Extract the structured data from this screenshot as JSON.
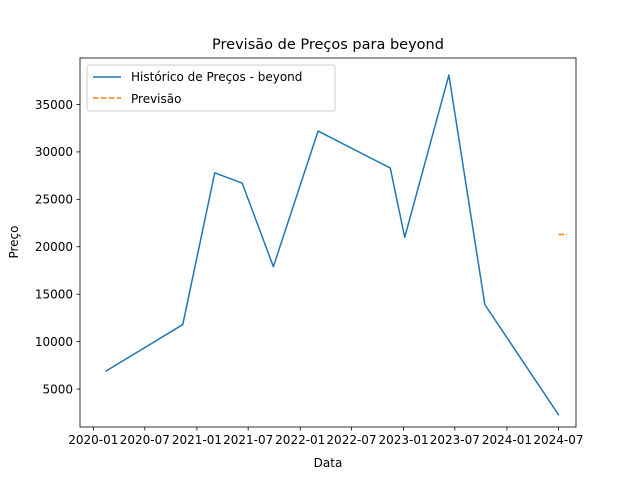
{
  "chart_data": {
    "type": "line",
    "title": "Previsão de Preços para beyond",
    "xlabel": "Data",
    "ylabel": "Preço",
    "x_axis_kind": "date",
    "xlim": [
      "2019-11-15",
      "2024-09-01"
    ],
    "ylim": [
      1000,
      39900
    ],
    "x_ticks": [
      {
        "date": "2020-01-01",
        "label": "2020-01"
      },
      {
        "date": "2020-07-01",
        "label": "2020-07"
      },
      {
        "date": "2021-01-01",
        "label": "2021-01"
      },
      {
        "date": "2021-07-01",
        "label": "2021-07"
      },
      {
        "date": "2022-01-01",
        "label": "2022-01"
      },
      {
        "date": "2022-07-01",
        "label": "2022-07"
      },
      {
        "date": "2023-01-01",
        "label": "2023-01"
      },
      {
        "date": "2023-07-01",
        "label": "2023-07"
      },
      {
        "date": "2024-01-01",
        "label": "2024-01"
      },
      {
        "date": "2024-07-01",
        "label": "2024-07"
      }
    ],
    "y_ticks": [
      5000,
      10000,
      15000,
      20000,
      25000,
      30000,
      35000
    ],
    "grid": false,
    "legend": "top-left",
    "series": [
      {
        "name": "Histórico de Preços - beyond",
        "color": "#1f77b4",
        "style": "solid",
        "points": [
          {
            "x": "2020-02-15",
            "y": 6900
          },
          {
            "x": "2020-11-12",
            "y": 11800
          },
          {
            "x": "2021-03-05",
            "y": 27800
          },
          {
            "x": "2021-06-10",
            "y": 26700
          },
          {
            "x": "2021-09-28",
            "y": 17900
          },
          {
            "x": "2022-03-05",
            "y": 32200
          },
          {
            "x": "2022-11-15",
            "y": 28300
          },
          {
            "x": "2023-01-05",
            "y": 21000
          },
          {
            "x": "2023-06-10",
            "y": 38100
          },
          {
            "x": "2023-10-15",
            "y": 13900
          },
          {
            "x": "2024-07-01",
            "y": 2300
          }
        ]
      },
      {
        "name": "Previsão",
        "color": "#ff7f0e",
        "style": "dashed",
        "points": [
          {
            "x": "2024-07-01",
            "y": 21300
          },
          {
            "x": "2024-08-01",
            "y": 21300
          }
        ]
      }
    ]
  }
}
